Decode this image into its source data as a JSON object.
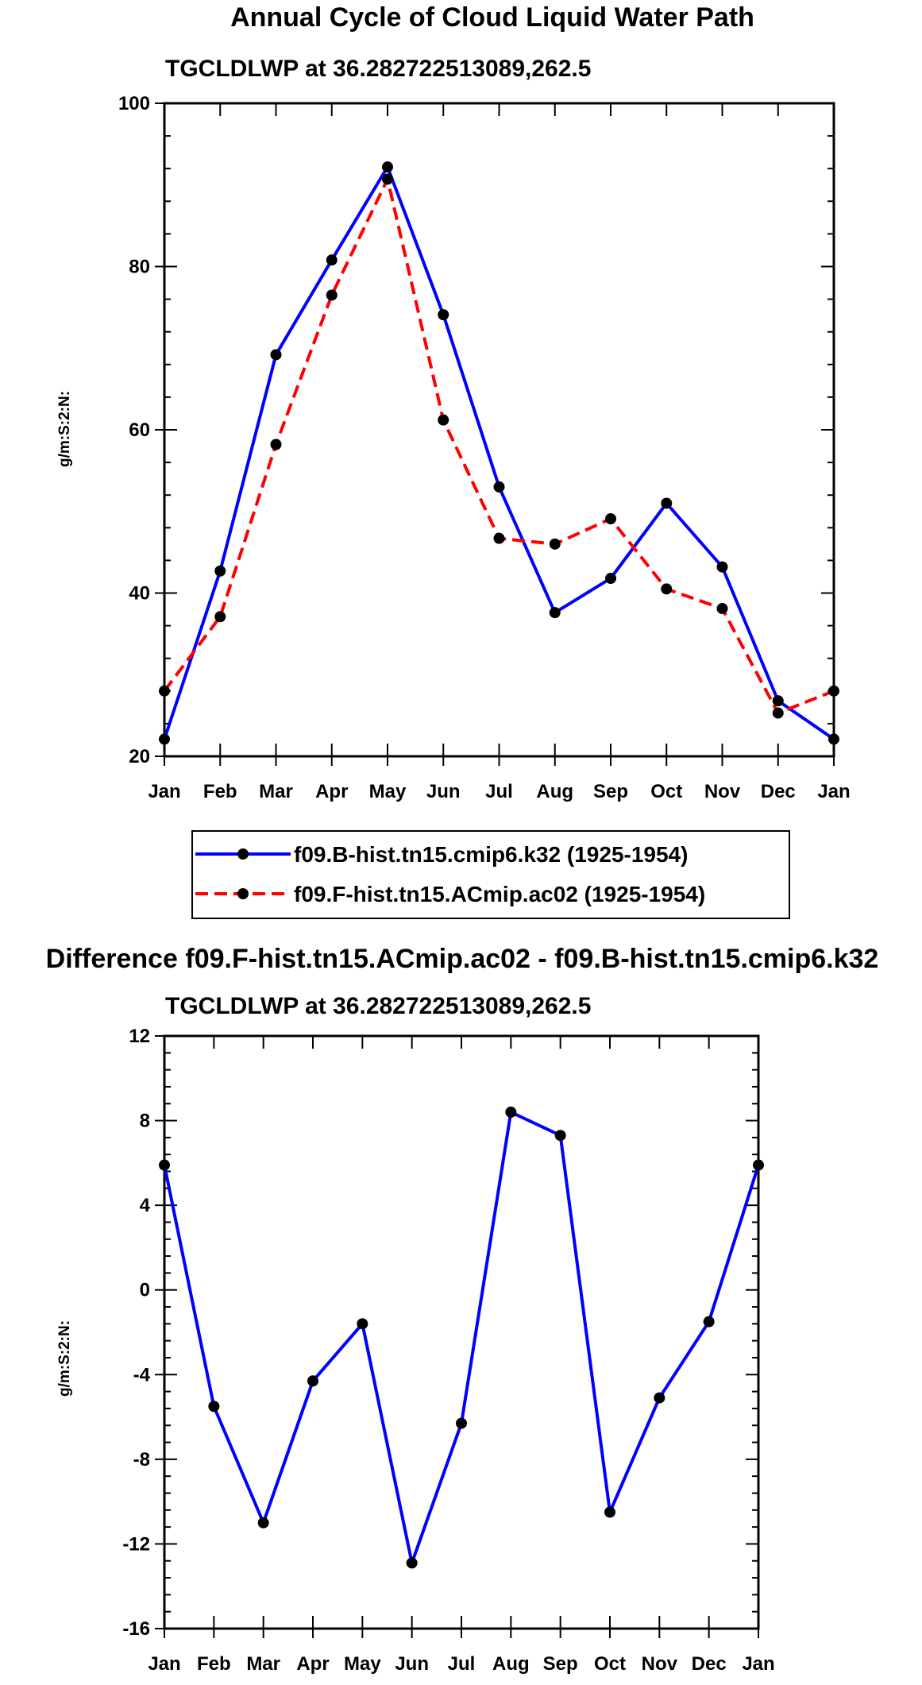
{
  "chart_data": [
    {
      "type": "line",
      "title": "Annual Cycle of Cloud Liquid Water Path",
      "subtitle": "TGCLDLWP at 36.282722513089,262.5",
      "xlabel": "",
      "ylabel": "g/m:S:2:N:",
      "categories": [
        "Jan",
        "Feb",
        "Mar",
        "Apr",
        "May",
        "Jun",
        "Jul",
        "Aug",
        "Sep",
        "Oct",
        "Nov",
        "Dec",
        "Jan"
      ],
      "yticks": [
        "20",
        "40",
        "60",
        "80",
        "100"
      ],
      "ylim": [
        20,
        100
      ],
      "series": [
        {
          "name": "f09.B-hist.tn15.cmip6.k32 (1925-1954)",
          "color": "#0000ff",
          "dash": "solid",
          "values": [
            22.1,
            42.7,
            69.2,
            80.8,
            92.2,
            74.1,
            53.0,
            37.6,
            41.8,
            51.0,
            43.2,
            26.8,
            22.1
          ]
        },
        {
          "name": "f09.F-hist.tn15.ACmip.ac02 (1925-1954)",
          "color": "#ff0000",
          "dash": "dashed",
          "values": [
            28.0,
            37.1,
            58.2,
            76.5,
            90.7,
            61.2,
            46.7,
            46.0,
            49.1,
            40.5,
            38.1,
            25.3,
            28.0
          ]
        }
      ]
    },
    {
      "type": "line",
      "title": "Difference f09.F-hist.tn15.ACmip.ac02 - f09.B-hist.tn15.cmip6.k32",
      "subtitle": "TGCLDLWP at 36.282722513089,262.5",
      "xlabel": "",
      "ylabel": "g/m:S:2:N:",
      "categories": [
        "Jan",
        "Feb",
        "Mar",
        "Apr",
        "May",
        "Jun",
        "Jul",
        "Aug",
        "Sep",
        "Oct",
        "Nov",
        "Dec",
        "Jan"
      ],
      "yticks": [
        "-16",
        "-12",
        "-8",
        "-4",
        "0",
        "4",
        "8",
        "12"
      ],
      "ylim": [
        -16,
        12
      ],
      "series": [
        {
          "name": "difference",
          "color": "#0000ff",
          "dash": "solid",
          "values": [
            5.9,
            -5.5,
            -11.0,
            -4.3,
            -1.6,
            -12.9,
            -6.3,
            8.4,
            7.3,
            -10.5,
            -5.1,
            -1.5,
            5.9
          ]
        }
      ]
    }
  ]
}
